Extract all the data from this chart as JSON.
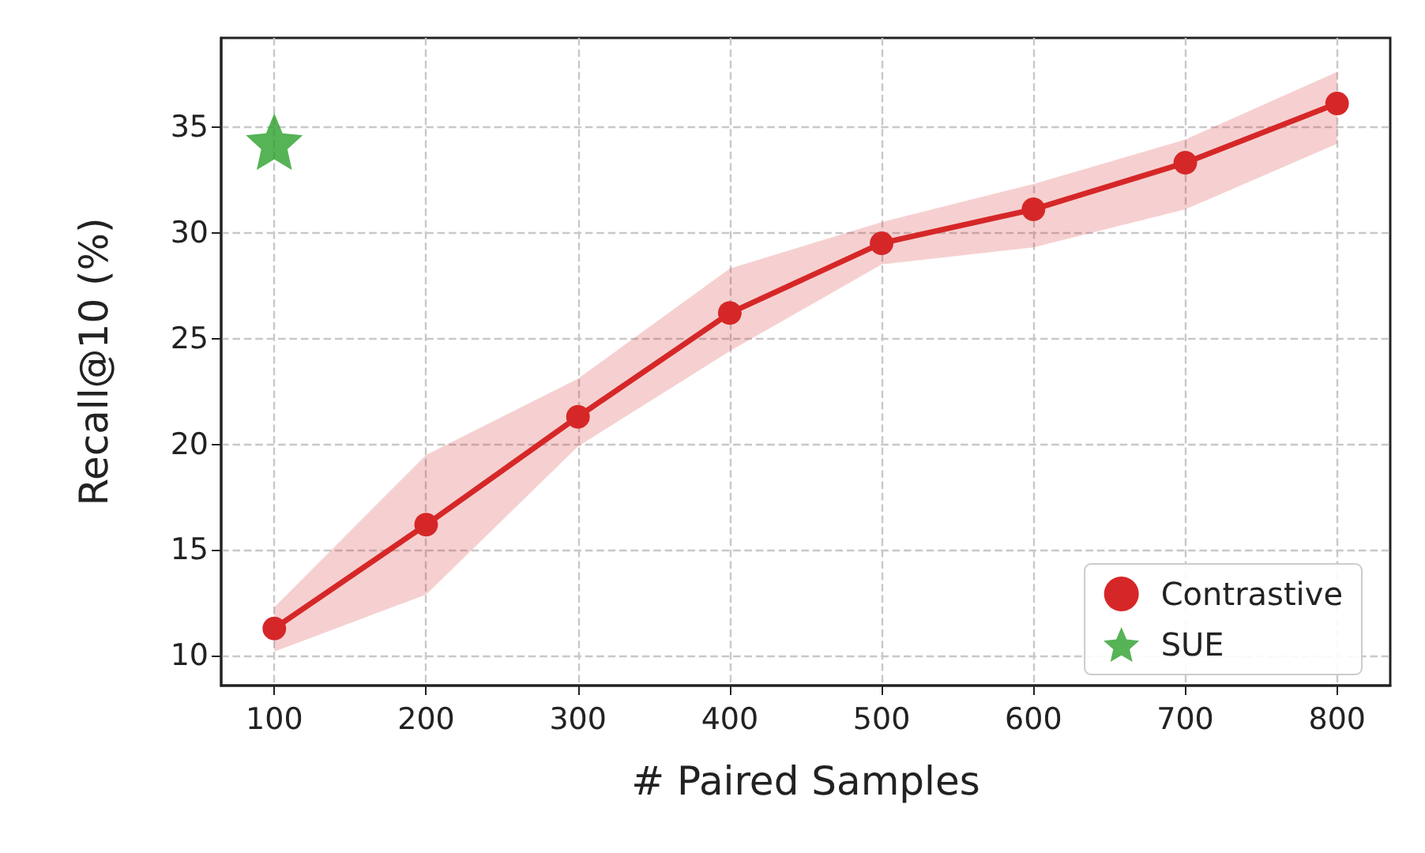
{
  "chart_data": {
    "type": "line",
    "xlabel": "# Paired Samples",
    "ylabel": "Recall@10 (%)",
    "xlim": [
      65,
      835
    ],
    "ylim": [
      8.6,
      39.2
    ],
    "xticks": [
      100,
      200,
      300,
      400,
      500,
      600,
      700,
      800
    ],
    "yticks": [
      10,
      15,
      20,
      25,
      30,
      35
    ],
    "grid": true,
    "legend": "bottom right",
    "marker": "circle",
    "line_style": "solid",
    "series": [
      {
        "name": "Contrastive",
        "color": "#d62728",
        "x": [
          100,
          200,
          300,
          400,
          500,
          600,
          700,
          800
        ],
        "values": [
          11.3,
          16.2,
          21.3,
          26.2,
          29.5,
          31.1,
          33.3,
          36.1
        ],
        "lower": [
          10.2,
          12.9,
          19.9,
          24.4,
          28.5,
          29.3,
          31.1,
          34.2
        ],
        "upper": [
          12.3,
          19.5,
          23.1,
          28.3,
          30.5,
          32.3,
          34.4,
          37.6
        ]
      },
      {
        "name": "SUE",
        "type": "scatter",
        "marker": "star",
        "color": "#2ca02c",
        "x": [
          100
        ],
        "values": [
          34.3
        ]
      }
    ]
  }
}
